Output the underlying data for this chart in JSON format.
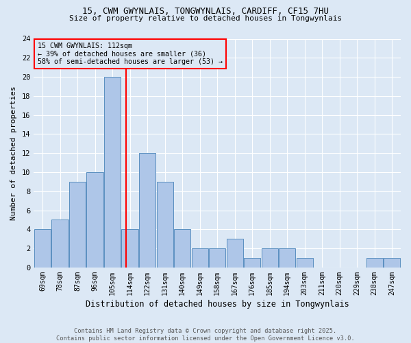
{
  "title1": "15, CWM GWYNLAIS, TONGWYNLAIS, CARDIFF, CF15 7HU",
  "title2": "Size of property relative to detached houses in Tongwynlais",
  "xlabel": "Distribution of detached houses by size in Tongwynlais",
  "ylabel": "Number of detached properties",
  "categories": [
    "69sqm",
    "78sqm",
    "87sqm",
    "96sqm",
    "105sqm",
    "114sqm",
    "122sqm",
    "131sqm",
    "140sqm",
    "149sqm",
    "158sqm",
    "167sqm",
    "176sqm",
    "185sqm",
    "194sqm",
    "203sqm",
    "211sqm",
    "220sqm",
    "229sqm",
    "238sqm",
    "247sqm"
  ],
  "values": [
    4,
    5,
    9,
    10,
    20,
    4,
    12,
    9,
    4,
    2,
    2,
    3,
    1,
    2,
    2,
    1,
    0,
    0,
    0,
    1,
    1
  ],
  "bar_color": "#aec6e8",
  "bar_edge_color": "#5a8fc0",
  "reference_line_x": 4.78,
  "annotation_line1": "15 CWM GWYNLAIS: 112sqm",
  "annotation_line2": "← 39% of detached houses are smaller (36)",
  "annotation_line3": "58% of semi-detached houses are larger (53) →",
  "ylim": [
    0,
    24
  ],
  "yticks": [
    0,
    2,
    4,
    6,
    8,
    10,
    12,
    14,
    16,
    18,
    20,
    22,
    24
  ],
  "footer1": "Contains HM Land Registry data © Crown copyright and database right 2025.",
  "footer2": "Contains public sector information licensed under the Open Government Licence v3.0.",
  "background_color": "#dce8f5",
  "grid_color": "#ffffff"
}
